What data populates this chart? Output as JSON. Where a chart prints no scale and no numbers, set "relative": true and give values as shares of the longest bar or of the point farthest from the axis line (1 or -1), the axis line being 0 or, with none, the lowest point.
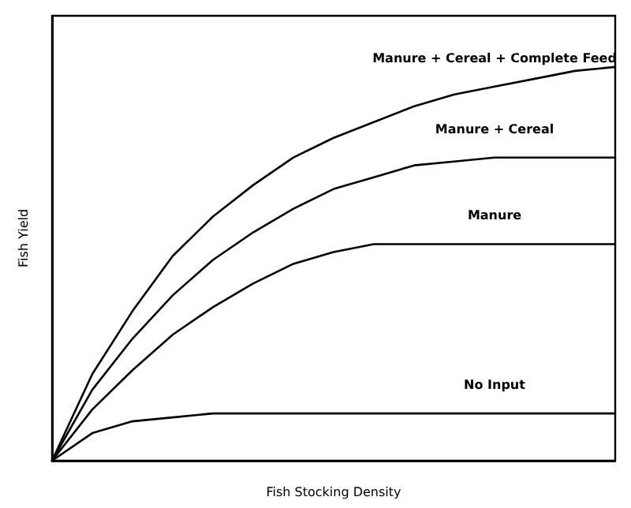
{
  "chart_data": {
    "type": "line",
    "relative": true,
    "xlabel": "Fish Stocking Density",
    "ylabel": "Fish Yield",
    "categories": [
      null,
      null,
      null,
      null,
      null,
      null,
      null,
      null,
      null,
      null,
      null,
      null,
      null,
      null,
      null
    ],
    "legend": false,
    "grid": false,
    "marker": "none",
    "line_style": "solid",
    "series": [
      {
        "name": "Manure + Cereal + Complete Feed",
        "color": "#000000",
        "values": [
          0,
          0.22,
          0.38,
          0.52,
          0.62,
          0.7,
          0.77,
          0.82,
          0.86,
          0.9,
          0.93,
          0.95,
          0.97,
          0.99,
          1.0
        ]
      },
      {
        "name": "Manure + Cereal",
        "color": "#000000",
        "values": [
          0,
          0.18,
          0.31,
          0.42,
          0.51,
          0.58,
          0.64,
          0.69,
          0.72,
          0.75,
          0.76,
          0.77,
          0.77,
          0.77,
          0.77
        ]
      },
      {
        "name": "Manure",
        "color": "#000000",
        "values": [
          0,
          0.13,
          0.23,
          0.32,
          0.39,
          0.45,
          0.5,
          0.53,
          0.55,
          0.55,
          0.55,
          0.55,
          0.55,
          0.55,
          0.55
        ]
      },
      {
        "name": "No Input",
        "color": "#000000",
        "values": [
          0,
          0.07,
          0.1,
          0.11,
          0.12,
          0.12,
          0.12,
          0.12,
          0.12,
          0.12,
          0.12,
          0.12,
          0.12,
          0.12,
          0.12
        ]
      }
    ]
  }
}
